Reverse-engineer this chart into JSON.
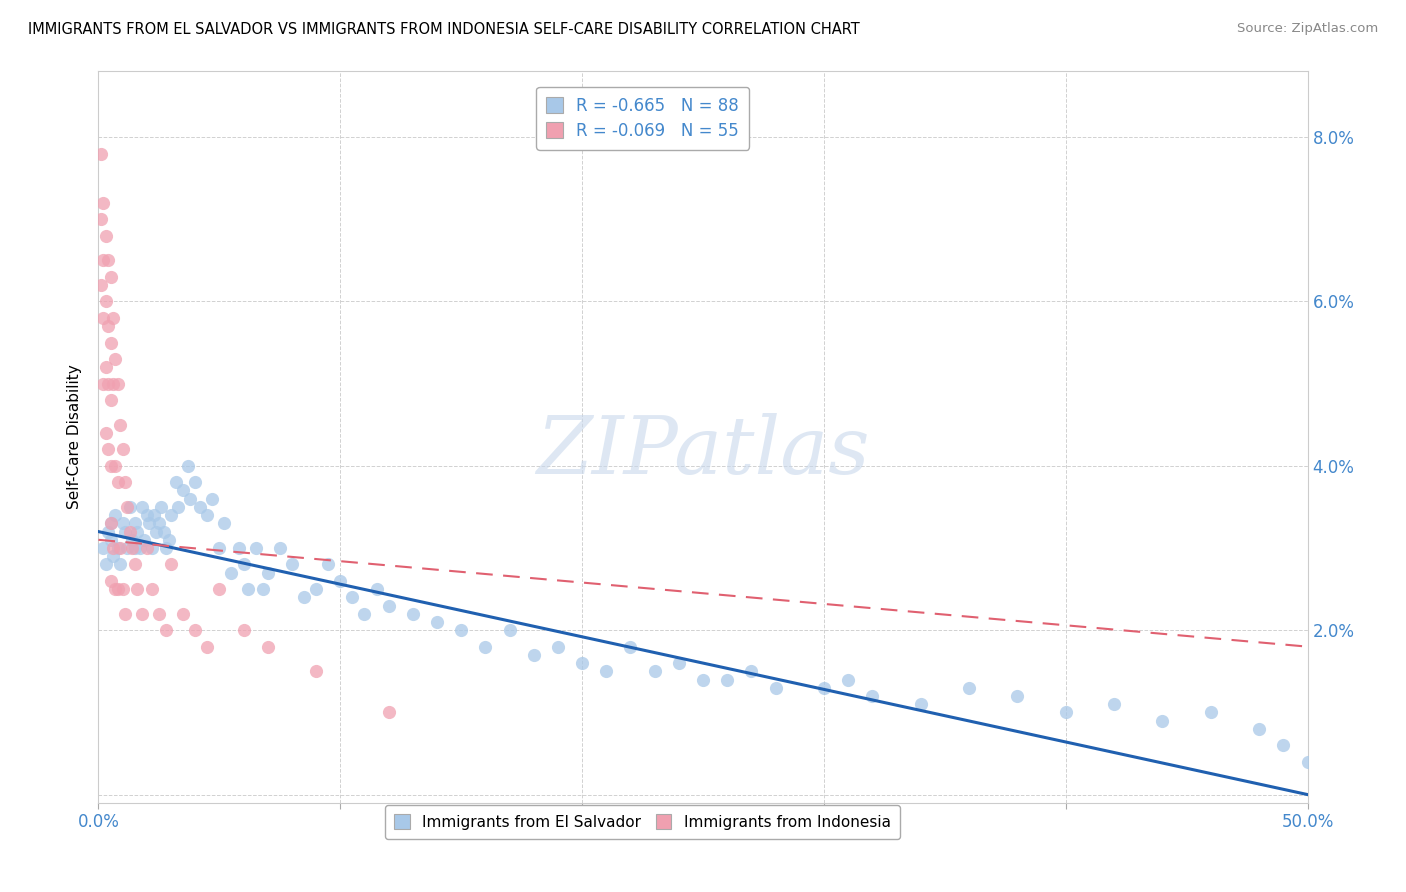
{
  "title": "IMMIGRANTS FROM EL SALVADOR VS IMMIGRANTS FROM INDONESIA SELF-CARE DISABILITY CORRELATION CHART",
  "source": "Source: ZipAtlas.com",
  "ylabel": "Self-Care Disability",
  "xlim": [
    0.0,
    0.5
  ],
  "ylim": [
    -0.001,
    0.088
  ],
  "yticks": [
    0.0,
    0.02,
    0.04,
    0.06,
    0.08
  ],
  "ytick_labels_right": [
    "",
    "2.0%",
    "4.0%",
    "6.0%",
    "8.0%"
  ],
  "xticks": [
    0.0,
    0.1,
    0.2,
    0.3,
    0.4,
    0.5
  ],
  "xtick_labels": [
    "0.0%",
    "",
    "",
    "",
    "",
    "50.0%"
  ],
  "legend_blue_label": "R = -0.665   N = 88",
  "legend_pink_label": "R = -0.069   N = 55",
  "blue_color": "#a8c8e8",
  "pink_color": "#f0a0b0",
  "blue_line_color": "#2060b0",
  "pink_line_color": "#e06070",
  "watermark": "ZIPatlas",
  "tick_color": "#4488cc",
  "el_salvador_x": [
    0.002,
    0.003,
    0.004,
    0.005,
    0.005,
    0.006,
    0.007,
    0.008,
    0.009,
    0.01,
    0.011,
    0.012,
    0.013,
    0.014,
    0.015,
    0.015,
    0.016,
    0.017,
    0.018,
    0.019,
    0.02,
    0.021,
    0.022,
    0.023,
    0.024,
    0.025,
    0.026,
    0.027,
    0.028,
    0.029,
    0.03,
    0.032,
    0.033,
    0.035,
    0.037,
    0.038,
    0.04,
    0.042,
    0.045,
    0.047,
    0.05,
    0.052,
    0.055,
    0.058,
    0.06,
    0.062,
    0.065,
    0.068,
    0.07,
    0.075,
    0.08,
    0.085,
    0.09,
    0.095,
    0.1,
    0.105,
    0.11,
    0.115,
    0.12,
    0.13,
    0.14,
    0.15,
    0.16,
    0.17,
    0.18,
    0.19,
    0.2,
    0.21,
    0.22,
    0.23,
    0.24,
    0.25,
    0.26,
    0.27,
    0.28,
    0.3,
    0.31,
    0.32,
    0.34,
    0.36,
    0.38,
    0.4,
    0.42,
    0.44,
    0.46,
    0.48,
    0.49,
    0.5
  ],
  "el_salvador_y": [
    0.03,
    0.028,
    0.032,
    0.031,
    0.033,
    0.029,
    0.034,
    0.03,
    0.028,
    0.033,
    0.032,
    0.03,
    0.035,
    0.031,
    0.033,
    0.03,
    0.032,
    0.03,
    0.035,
    0.031,
    0.034,
    0.033,
    0.03,
    0.034,
    0.032,
    0.033,
    0.035,
    0.032,
    0.03,
    0.031,
    0.034,
    0.038,
    0.035,
    0.037,
    0.04,
    0.036,
    0.038,
    0.035,
    0.034,
    0.036,
    0.03,
    0.033,
    0.027,
    0.03,
    0.028,
    0.025,
    0.03,
    0.025,
    0.027,
    0.03,
    0.028,
    0.024,
    0.025,
    0.028,
    0.026,
    0.024,
    0.022,
    0.025,
    0.023,
    0.022,
    0.021,
    0.02,
    0.018,
    0.02,
    0.017,
    0.018,
    0.016,
    0.015,
    0.018,
    0.015,
    0.016,
    0.014,
    0.014,
    0.015,
    0.013,
    0.013,
    0.014,
    0.012,
    0.011,
    0.013,
    0.012,
    0.01,
    0.011,
    0.009,
    0.01,
    0.008,
    0.006,
    0.004
  ],
  "indonesia_x": [
    0.001,
    0.001,
    0.001,
    0.002,
    0.002,
    0.002,
    0.002,
    0.003,
    0.003,
    0.003,
    0.003,
    0.004,
    0.004,
    0.004,
    0.004,
    0.005,
    0.005,
    0.005,
    0.005,
    0.005,
    0.005,
    0.006,
    0.006,
    0.006,
    0.007,
    0.007,
    0.007,
    0.008,
    0.008,
    0.008,
    0.009,
    0.009,
    0.01,
    0.01,
    0.011,
    0.011,
    0.012,
    0.013,
    0.014,
    0.015,
    0.016,
    0.018,
    0.02,
    0.022,
    0.025,
    0.028,
    0.03,
    0.035,
    0.04,
    0.045,
    0.05,
    0.06,
    0.07,
    0.09,
    0.12
  ],
  "indonesia_y": [
    0.078,
    0.07,
    0.062,
    0.072,
    0.065,
    0.058,
    0.05,
    0.068,
    0.06,
    0.052,
    0.044,
    0.065,
    0.057,
    0.05,
    0.042,
    0.063,
    0.055,
    0.048,
    0.04,
    0.033,
    0.026,
    0.058,
    0.05,
    0.03,
    0.053,
    0.04,
    0.025,
    0.05,
    0.038,
    0.025,
    0.045,
    0.03,
    0.042,
    0.025,
    0.038,
    0.022,
    0.035,
    0.032,
    0.03,
    0.028,
    0.025,
    0.022,
    0.03,
    0.025,
    0.022,
    0.02,
    0.028,
    0.022,
    0.02,
    0.018,
    0.025,
    0.02,
    0.018,
    0.015,
    0.01
  ]
}
